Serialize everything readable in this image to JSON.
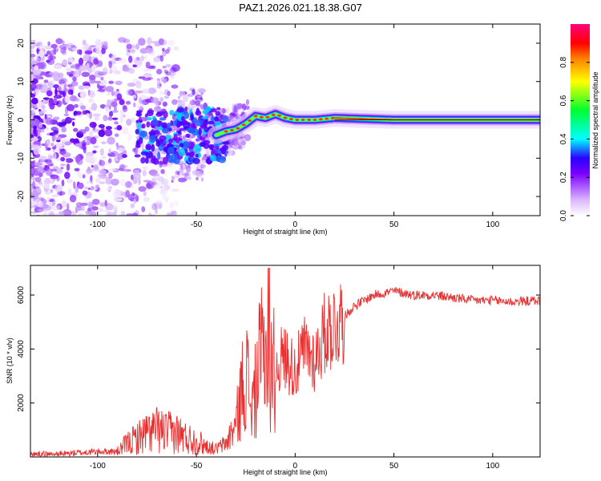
{
  "title": "PAZ1.2026.021.18.38.G07",
  "chart_data": [
    {
      "type": "heatmap",
      "xlabel": "Height of straight line (km)",
      "ylabel": "Frequency (Hz)",
      "xlim": [
        -134,
        124
      ],
      "ylim": [
        -25,
        25
      ],
      "xticks": [
        -100,
        -50,
        0,
        50,
        100
      ],
      "yticks": [
        -20,
        -10,
        0,
        10,
        20
      ],
      "ridge": [
        {
          "x": -40,
          "y": -4
        },
        {
          "x": -35,
          "y": -3
        },
        {
          "x": -30,
          "y": -2.5
        },
        {
          "x": -25,
          "y": -1
        },
        {
          "x": -20,
          "y": 1
        },
        {
          "x": -15,
          "y": 0.5
        },
        {
          "x": -10,
          "y": 1.5
        },
        {
          "x": -5,
          "y": 0.5
        },
        {
          "x": 0,
          "y": 0
        },
        {
          "x": 10,
          "y": 0
        },
        {
          "x": 20,
          "y": 0.5
        },
        {
          "x": 50,
          "y": 0
        },
        {
          "x": 124,
          "y": 0
        }
      ],
      "colorbar": {
        "label": "Normalized spectral amplitude",
        "ticks": [
          "0.0",
          "0.2",
          "0.4",
          "0.6",
          "0.8"
        ],
        "tick_values": [
          0.0,
          0.2,
          0.4,
          0.6,
          0.8
        ],
        "range": [
          0,
          1
        ]
      }
    },
    {
      "type": "line",
      "xlabel": "Height of straight line (km)",
      "ylabel": "SNR (10 * v/v)",
      "xlim": [
        -134,
        124
      ],
      "ylim": [
        0,
        7100
      ],
      "xticks": [
        -100,
        -50,
        0,
        50,
        100
      ],
      "yticks": [
        2000,
        4000,
        6000
      ],
      "line_color": "#e83030",
      "series": [
        {
          "name": "SNR",
          "x": [
            -134,
            -120,
            -100,
            -90,
            -85,
            -80,
            -75,
            -70,
            -65,
            -60,
            -55,
            -50,
            -45,
            -40,
            -35,
            -30,
            -27,
            -25,
            -22,
            -20,
            -18,
            -15,
            -13,
            -12,
            -10,
            -8,
            -5,
            0,
            5,
            10,
            15,
            20,
            25,
            30,
            35,
            40,
            50,
            60,
            70,
            80,
            90,
            100,
            110,
            124
          ],
          "y": [
            100,
            100,
            200,
            200,
            500,
            700,
            900,
            1000,
            900,
            900,
            700,
            600,
            400,
            300,
            500,
            1200,
            2500,
            3300,
            1800,
            2500,
            3400,
            4000,
            500,
            3600,
            3000,
            3600,
            3700,
            3200,
            4000,
            3600,
            4600,
            4900,
            5200,
            5600,
            5800,
            6000,
            6150,
            6000,
            6000,
            5900,
            5800,
            5800,
            5750,
            5800
          ]
        }
      ]
    }
  ]
}
